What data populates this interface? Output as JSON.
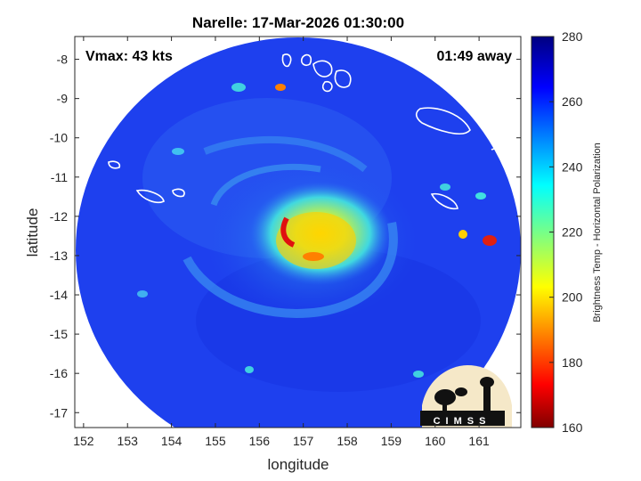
{
  "title": "Narelle: 17-Mar-2026 01:30:00",
  "annotations": {
    "vmax": "Vmax: 43 kts",
    "time_away": "01:49 away"
  },
  "axes": {
    "xlabel": "longitude",
    "ylabel": "latitude",
    "xticks": [
      "152",
      "153",
      "154",
      "155",
      "156",
      "157",
      "158",
      "159",
      "160",
      "161"
    ],
    "yticks": [
      "-8",
      "-9",
      "-10",
      "-11",
      "-12",
      "-13",
      "-14",
      "-15",
      "-16",
      "-17"
    ],
    "xlim": [
      151.8,
      161.95
    ],
    "ylim": [
      -17.38,
      -7.42
    ]
  },
  "colorbar": {
    "label": "Brightness Temp - Horizontal Polarization",
    "ticks": [
      "280",
      "260",
      "240",
      "220",
      "200",
      "180",
      "160"
    ],
    "range": [
      160,
      280
    ]
  },
  "logo": {
    "text": "CIMSS"
  },
  "colors": {
    "background_swath": "#1e3df0",
    "coast_outline": "#ffffff"
  }
}
